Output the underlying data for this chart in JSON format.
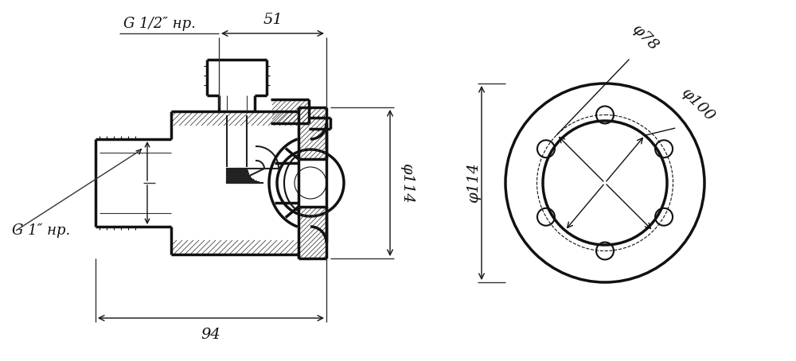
{
  "bg_color": "#ffffff",
  "line_color": "#111111",
  "fig_width": 10.0,
  "fig_height": 4.54,
  "dpi": 100,
  "annotations": {
    "dim_51_label": "51",
    "dim_94_label": "94",
    "dim_114_label": "φ114",
    "dim_78_label": "φ78",
    "dim_100_label": "φ100",
    "label_g1": "G 1″ нр.",
    "label_g12": "G 1/2″ нр."
  },
  "font_size_dim": 14,
  "font_size_label": 13
}
